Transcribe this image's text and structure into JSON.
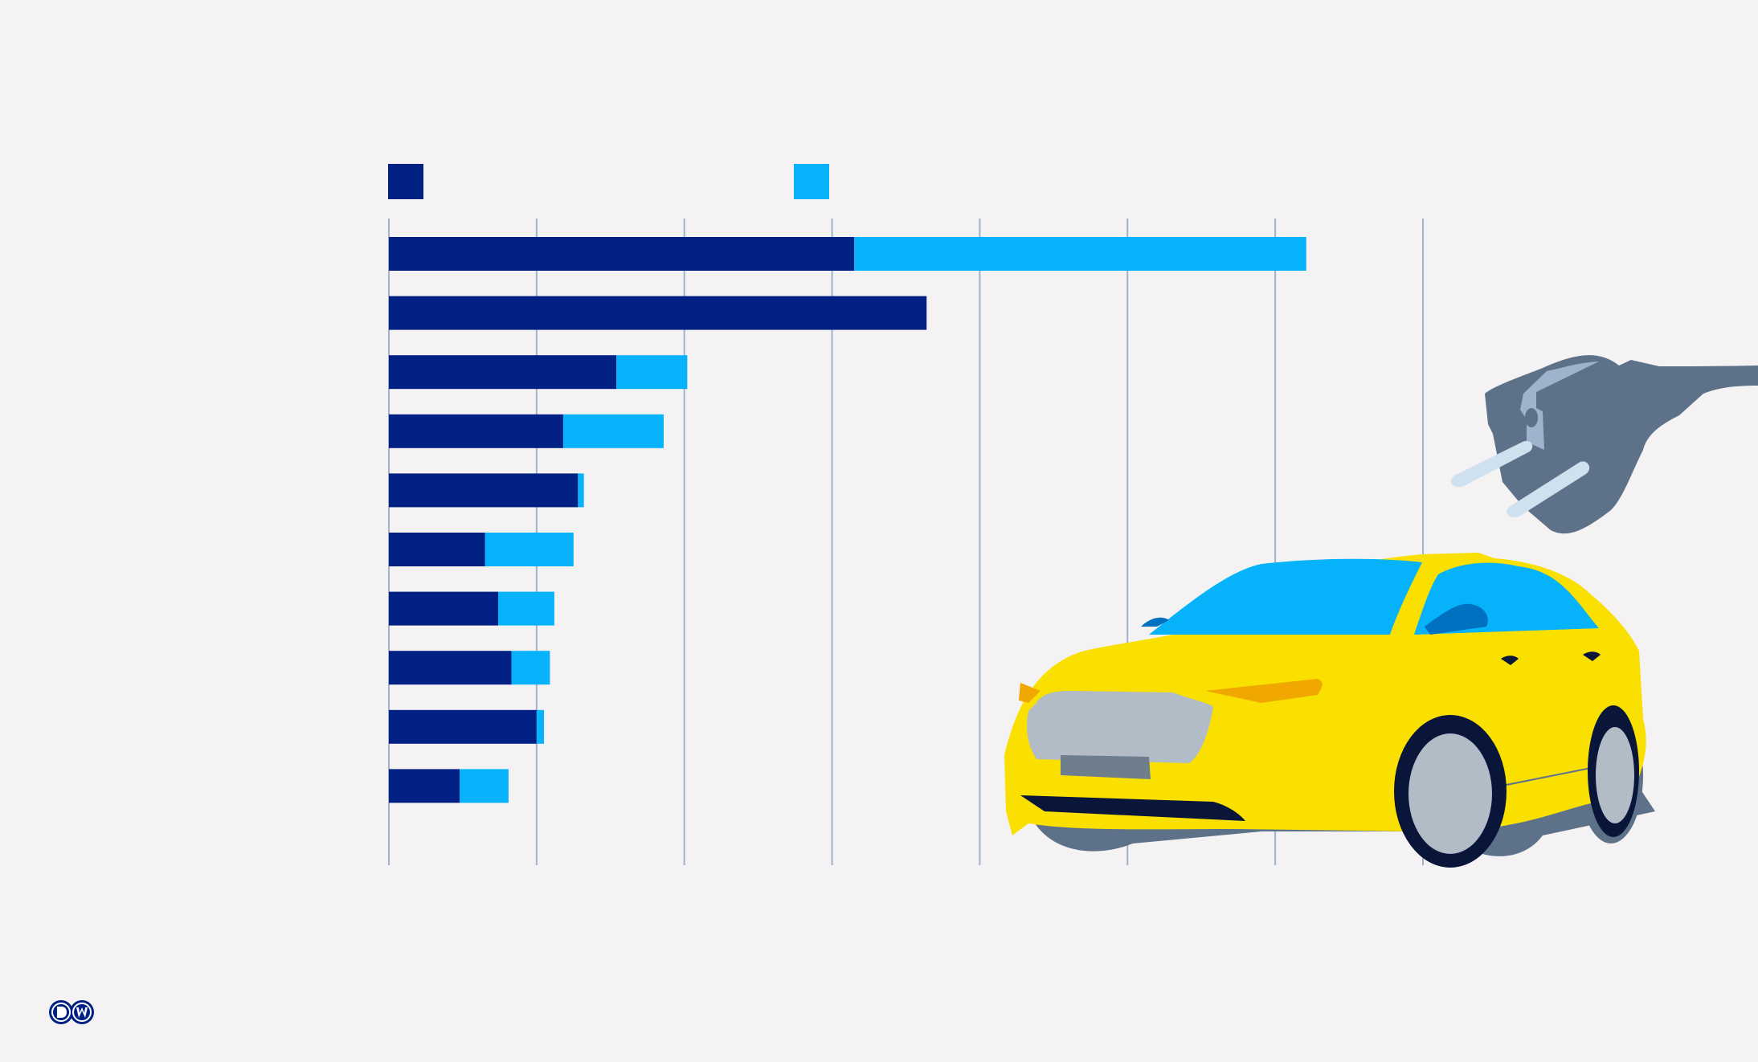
{
  "chart_data": {
    "type": "bar",
    "orientation": "horizontal",
    "stacked": true,
    "grid": true,
    "categories": [
      "",
      "",
      "",
      "",
      "",
      "",
      "",
      "",
      "",
      ""
    ],
    "series": [
      {
        "color": "#002084",
        "values": [
          315,
          364,
          154,
          118,
          128,
          65,
          74,
          83,
          100,
          48
        ]
      },
      {
        "color": "#06b2fa",
        "values": [
          306,
          0,
          48,
          68,
          4,
          60,
          38,
          26,
          5,
          33
        ]
      }
    ],
    "xlim": [
      0,
      700
    ],
    "xticks": [
      0,
      100,
      200,
      300,
      400,
      500,
      600,
      700
    ],
    "legend": "top-left"
  },
  "colors": {
    "background": "#f4f2f3",
    "gridline": "#9fb4cc",
    "car_body": "#f9e000",
    "car_glass": "#06b2fa",
    "plug": "#5d7189",
    "brand": "#002084"
  },
  "icons": {
    "car": "electric-car-illustration",
    "plug": "power-plug-illustration",
    "logo": "dw-logo"
  }
}
